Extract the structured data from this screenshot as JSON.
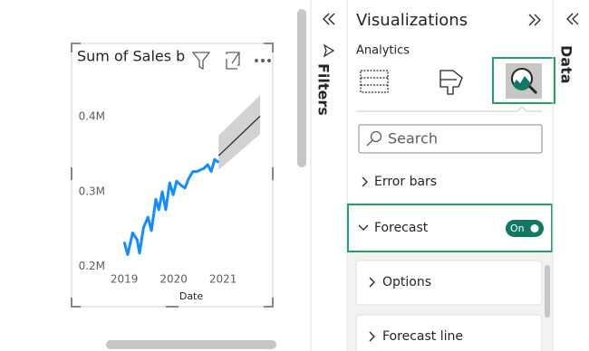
{
  "filters_pane": {
    "title": "Filters"
  },
  "visualizations_pane": {
    "title": "Visualizations",
    "tab": "Analytics",
    "search_placeholder": "Search",
    "sections": [
      "Error bars",
      "Forecast",
      "Options",
      "Forecast line"
    ],
    "forecast_toggle": "On"
  },
  "data_pane": {
    "title": "Data"
  },
  "chart_data": {
    "type": "line",
    "title": "Sum of Sales b",
    "x_label": "Date",
    "series": [
      {
        "color": "#118dff",
        "x": [
          2019.0,
          2019.07,
          2019.17,
          2019.26,
          2019.31,
          2019.39,
          2019.48,
          2019.55,
          2019.64,
          2019.7,
          2019.77,
          2019.84,
          2019.92,
          2019.99,
          2020.06,
          2020.16,
          2020.23,
          2020.3,
          2020.39,
          2020.47,
          2020.54,
          2020.61,
          2020.69,
          2020.76,
          2020.83,
          2020.91
        ],
        "values": [
          233000,
          216000,
          245000,
          236000,
          218000,
          252000,
          266000,
          248000,
          290000,
          276000,
          300000,
          276000,
          312000,
          296000,
          314000,
          308000,
          305000,
          317000,
          327000,
          327000,
          329000,
          331000,
          336000,
          327000,
          343000,
          339000
        ]
      },
      {
        "color": "#252423",
        "band_color": "#d2d2d2",
        "x": [
          2020.91,
          2021.75
        ],
        "values": [
          348000,
          401000
        ],
        "lower": [
          329000,
          377000
        ],
        "upper": [
          375000,
          429000
        ]
      }
    ],
    "xlim": [
      2018.65,
      2021.95
    ],
    "xticks": [
      2019,
      2020,
      2021
    ],
    "ylim": [
      190000,
      440000
    ],
    "yticks": [
      {
        "value": 200000,
        "label": "0.2M"
      },
      {
        "value": 300000,
        "label": "0.3M"
      },
      {
        "value": 400000,
        "label": "0.4M"
      }
    ]
  }
}
